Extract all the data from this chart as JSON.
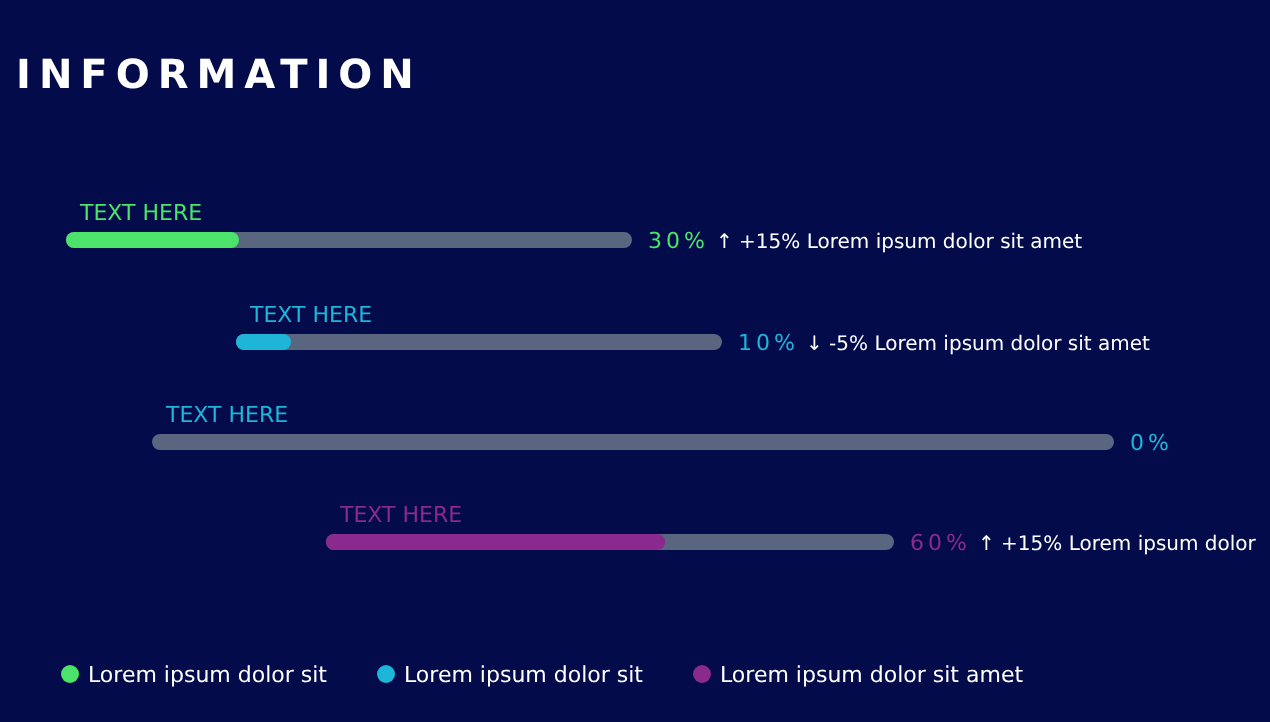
{
  "chart_data": {
    "type": "other",
    "title": "INFORMATION",
    "categories": [
      "TEXT HERE",
      "TEXT HERE",
      "TEXT HERE",
      "TEXT HERE"
    ],
    "series": [
      {
        "name": "Lorem ipsum dolor sit",
        "color": "#4be36a",
        "values": [
          30,
          null,
          null,
          null
        ],
        "value_labels": [
          "30%",
          null,
          null,
          null
        ]
      },
      {
        "name": "Lorem ipsum dolor sit",
        "color": "#1eb6d8",
        "values": [
          null,
          10,
          0,
          null
        ],
        "value_labels": [
          null,
          "10%",
          "0%",
          null
        ]
      },
      {
        "name": "Lorem ipsum dolor sit amet",
        "color": "#8a2a8e",
        "values": [
          null,
          null,
          null,
          60
        ],
        "value_labels": [
          null,
          null,
          null,
          "60%"
        ]
      }
    ],
    "annotations": [
      "↑ +15%  Lorem ipsum dolor sit amet",
      "↓ -5%  Lorem ipsum dolor sit amet",
      "↑ +15%  Lorem ipsum dolor"
    ],
    "legend": "bottom"
  }
}
